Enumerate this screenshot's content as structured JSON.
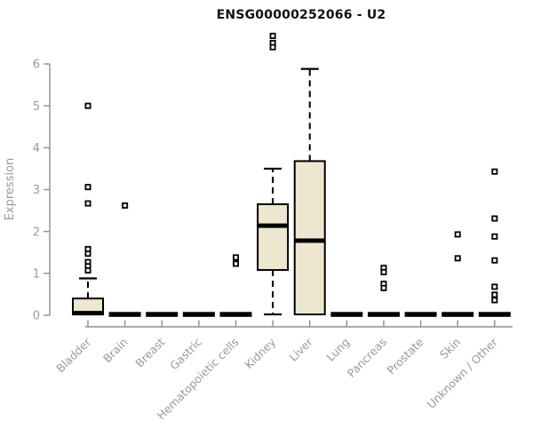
{
  "chart_data": {
    "type": "boxplot",
    "title": "ENSG00000252066 - U2",
    "ylabel": "Expression",
    "xlabel": "",
    "ylim": [
      0,
      6
    ],
    "yticks": [
      0,
      1,
      2,
      3,
      4,
      5,
      6
    ],
    "grid": false,
    "legend": "none",
    "colors": {
      "box_fill": "#EDE7CF",
      "box_stroke": "#000000",
      "axis": "#8f8f8f",
      "tick_label": "#999999",
      "title": "#111111"
    },
    "categories": [
      "Bladder",
      "Brain",
      "Breast",
      "Gastric",
      "Hematopoietic cells",
      "Kidney",
      "Liver",
      "Lung",
      "Pancreas",
      "Prostate",
      "Skin",
      "Unknown / Other"
    ],
    "boxes": [
      {
        "category": "Bladder",
        "flat": false,
        "low": 0.02,
        "q1": 0.02,
        "median": 0.05,
        "q3": 0.4,
        "high": 0.88,
        "outliers": [
          5.0,
          3.06,
          2.67,
          1.58,
          1.47,
          1.27,
          1.17,
          1.07
        ]
      },
      {
        "category": "Brain",
        "flat": true,
        "value": 0.02,
        "outliers": [
          2.62
        ]
      },
      {
        "category": "Breast",
        "flat": true,
        "value": 0.02,
        "outliers": []
      },
      {
        "category": "Gastric",
        "flat": true,
        "value": 0.02,
        "outliers": []
      },
      {
        "category": "Hematopoietic cells",
        "flat": true,
        "value": 0.02,
        "outliers": [
          1.38,
          1.23
        ]
      },
      {
        "category": "Kidney",
        "flat": false,
        "low": 0.02,
        "q1": 1.08,
        "median": 2.14,
        "q3": 2.65,
        "high": 3.5,
        "outliers": [
          6.67,
          6.5,
          6.4
        ]
      },
      {
        "category": "Liver",
        "flat": false,
        "low": 0.02,
        "q1": 0.02,
        "median": 1.78,
        "q3": 3.68,
        "high": 5.88,
        "outliers": []
      },
      {
        "category": "Lung",
        "flat": true,
        "value": 0.02,
        "outliers": []
      },
      {
        "category": "Pancreas",
        "flat": true,
        "value": 0.02,
        "outliers": [
          1.13,
          1.03,
          0.75,
          0.65
        ]
      },
      {
        "category": "Prostate",
        "flat": true,
        "value": 0.02,
        "outliers": []
      },
      {
        "category": "Skin",
        "flat": true,
        "value": 0.02,
        "outliers": [
          1.93,
          1.36
        ]
      },
      {
        "category": "Unknown / Other",
        "flat": true,
        "value": 0.02,
        "outliers": [
          3.43,
          2.31,
          1.88,
          1.31,
          0.68,
          0.49,
          0.36
        ]
      }
    ]
  }
}
